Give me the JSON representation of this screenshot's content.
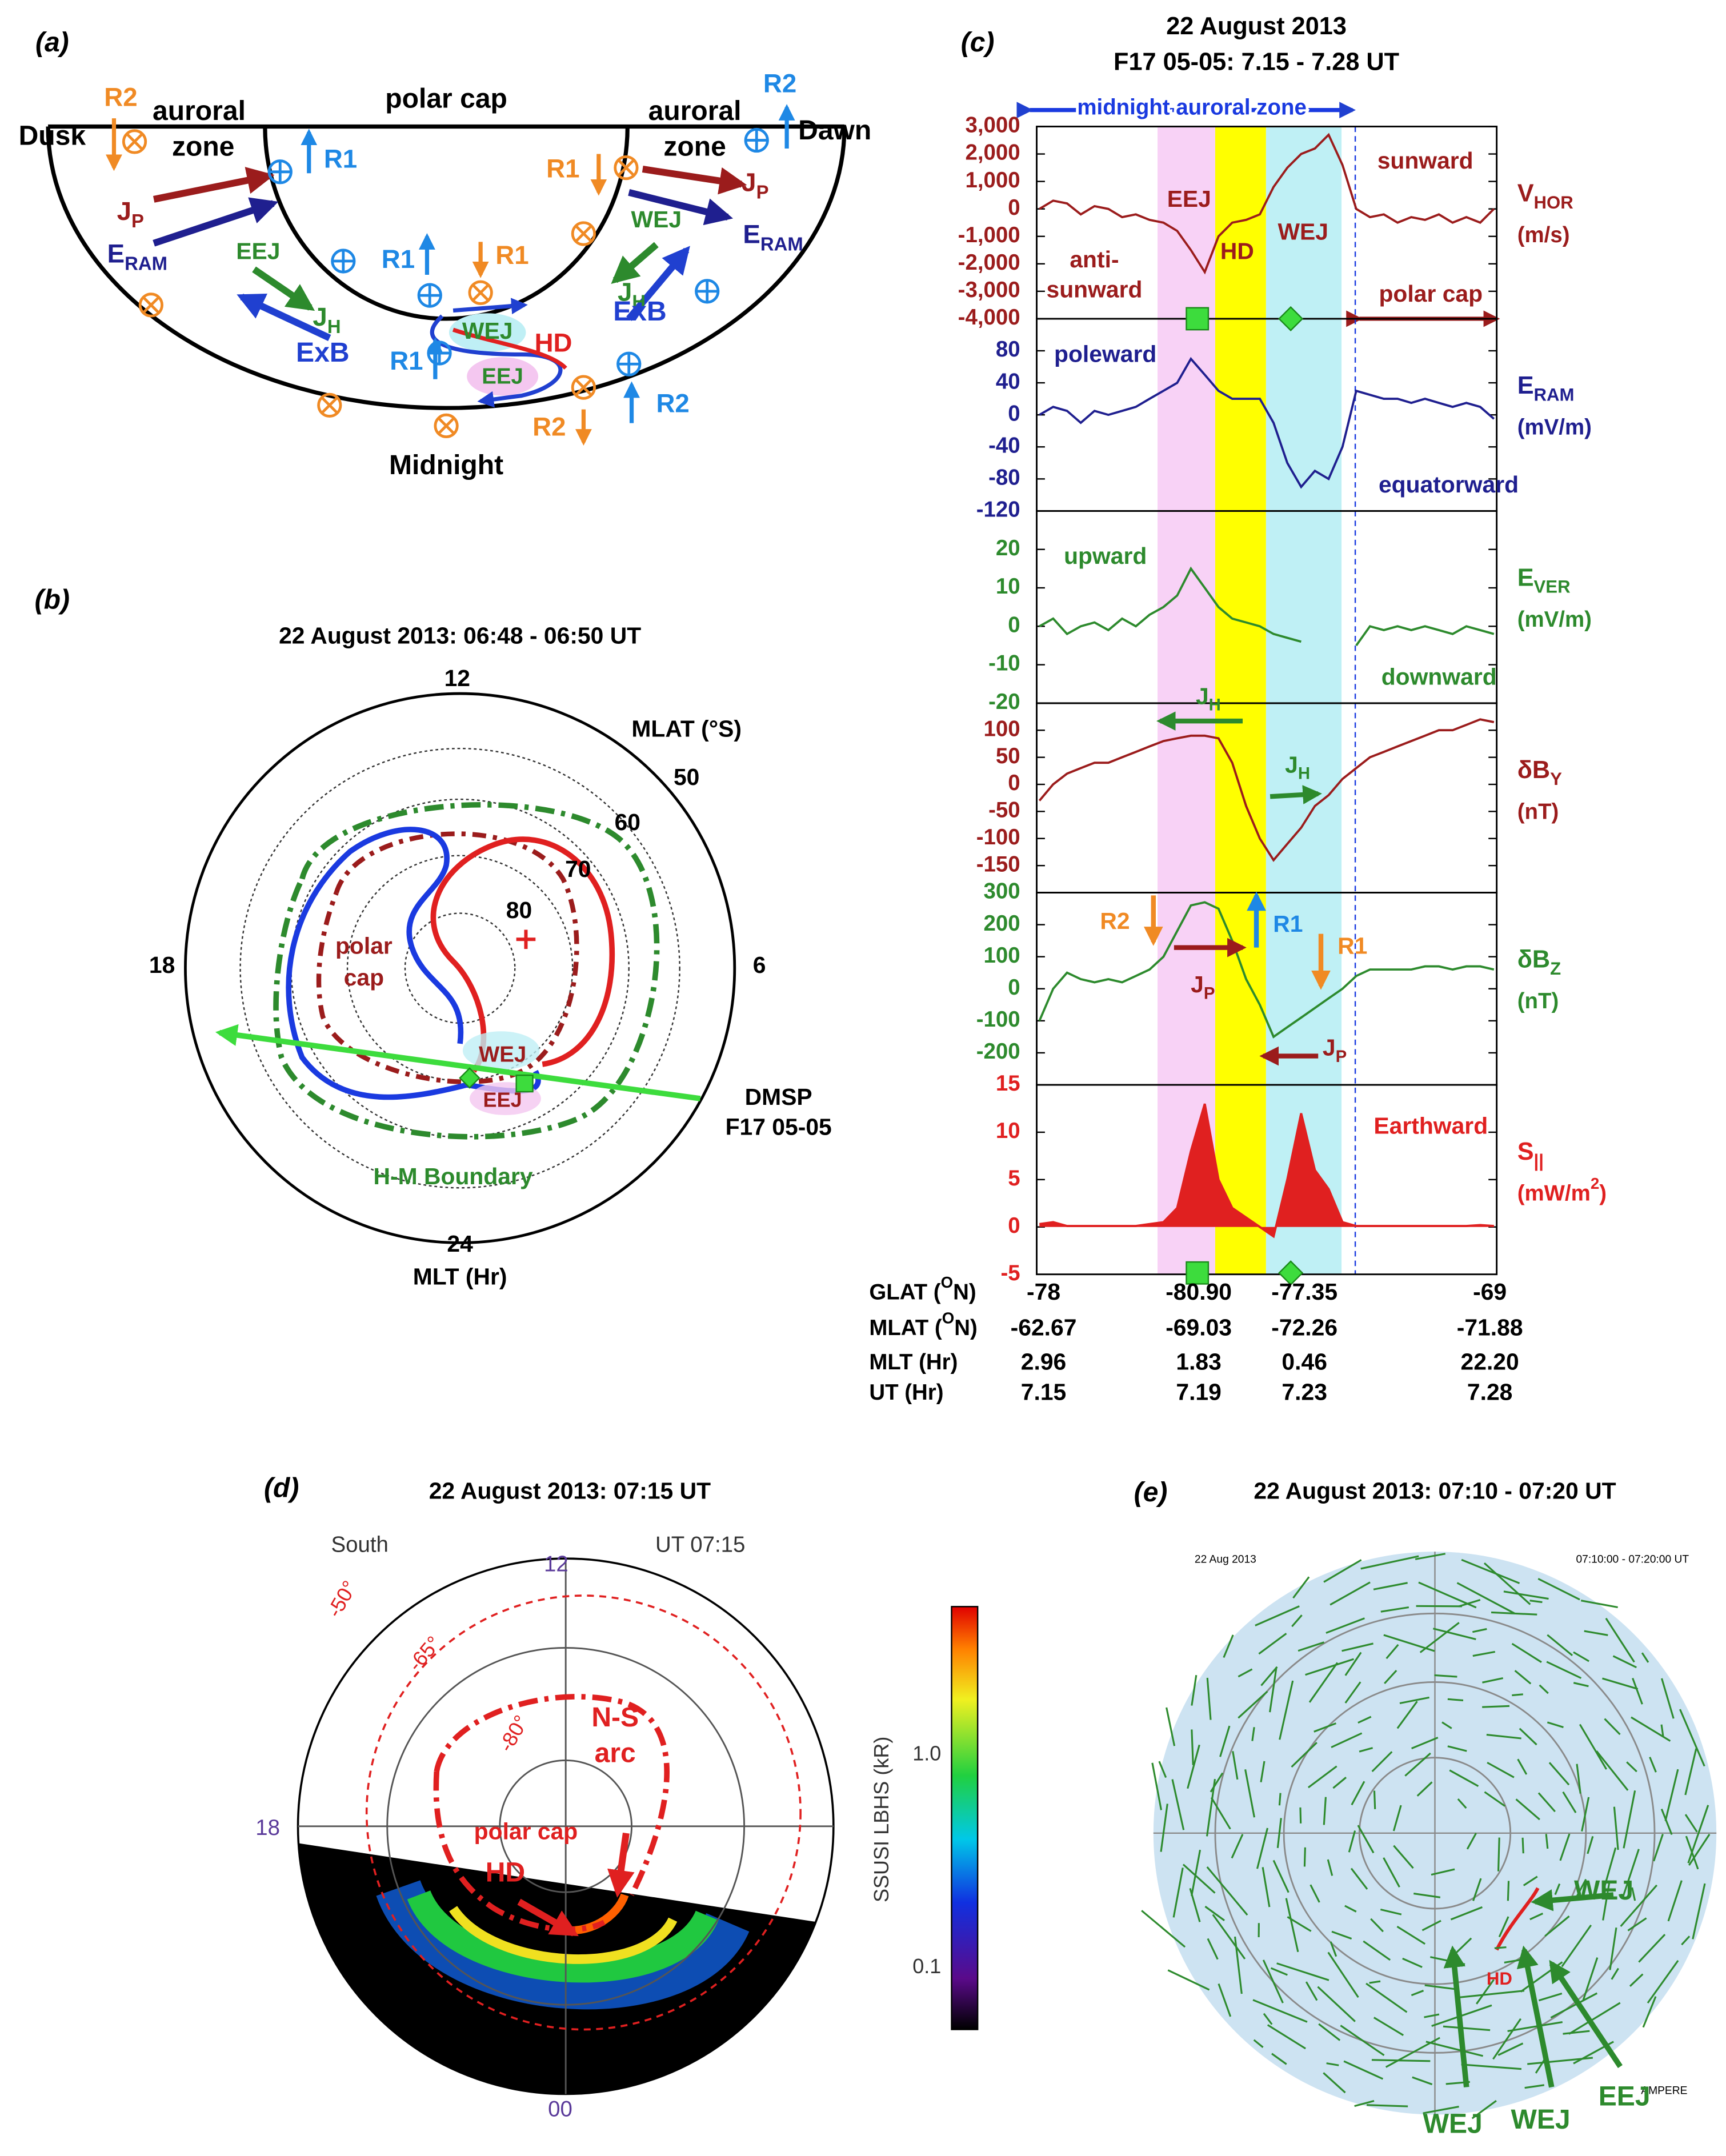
{
  "panel_a": {
    "label": "(a)",
    "texts": [
      "Dusk",
      "R2",
      "auroral",
      "zone",
      "polar cap",
      "auroral",
      "zone",
      "R2",
      "Dawn",
      "R1",
      {
        "main": "J",
        "sub": "P"
      },
      {
        "main": "E",
        "sub": "RAM"
      },
      "R1",
      {
        "main": "J",
        "sub": "P"
      },
      {
        "main": "E",
        "sub": "RAM"
      },
      "EEJ",
      {
        "main": "J",
        "sub": "H"
      },
      "ExB",
      "R1",
      "R1",
      "WEJ",
      {
        "main": "J",
        "sub": "H"
      },
      "ExB",
      "WEJ",
      "HD",
      "EEJ",
      "R1",
      "R2",
      "R2",
      "Midnight"
    ]
  },
  "panel_b": {
    "label": "(b)",
    "title": "22 August 2013: 06:48 - 06:50 UT",
    "mlt_labels": [
      "12",
      "18",
      "6",
      "24"
    ],
    "mlt_axis": "MLT (Hr)",
    "mlat_axis": "MLAT (°S)",
    "mlat_labels": [
      "50",
      "60",
      "70",
      "80"
    ],
    "texts": [
      "polar",
      "cap",
      "WEJ",
      "EEJ",
      "DMSP",
      "F17 05-05",
      "H-M Boundary"
    ]
  },
  "panel_c": {
    "label": "(c)",
    "title": [
      "22 August 2013",
      "F17 05-05: 7.15 - 7.28 UT"
    ],
    "top_annotation": "midnight auroral zone",
    "subplots": [
      {
        "label": {
          "main": "V",
          "sub": "HOR"
        },
        "unit": "(m/s)",
        "color": "#9b1c1c",
        "ylim": [
          -4000,
          3000
        ],
        "yticks": [
          {
            "value": 3000,
            "label": "3,000"
          },
          {
            "value": 2000,
            "label": "2,000"
          },
          {
            "value": 1000,
            "label": "1,000"
          },
          0,
          {
            "value": -1000,
            "label": "-1,000"
          },
          {
            "value": -2000,
            "label": "-2,000"
          },
          {
            "value": -3000,
            "label": "-3,000"
          },
          {
            "value": -4000,
            "label": "-4,000"
          }
        ],
        "values": [
          0,
          300,
          200,
          -200,
          100,
          0,
          -300,
          -200,
          -400,
          -500,
          -800,
          -1500,
          -2300,
          -1000,
          -500,
          -400,
          -200,
          800,
          1500,
          2000,
          2200,
          2700,
          1600,
          0,
          -300,
          -200,
          -500,
          -300,
          -400,
          -200,
          -500,
          -300,
          -500,
          0
        ],
        "annotations": [
          "sunward",
          "EEJ",
          "HD",
          "WEJ",
          "anti-",
          "sunward",
          "polar cap"
        ]
      },
      {
        "label": {
          "main": "E",
          "sub": "RAM"
        },
        "unit": "(mV/m)",
        "color": "#1f1f8f",
        "ylim": [
          -120,
          120
        ],
        "yticks": [
          80,
          40,
          0,
          -40,
          -80,
          -120
        ],
        "values": [
          0,
          10,
          5,
          -10,
          5,
          0,
          5,
          10,
          20,
          30,
          40,
          70,
          50,
          30,
          20,
          20,
          20,
          -10,
          -60,
          -90,
          -70,
          -80,
          -40,
          30,
          25,
          20,
          20,
          15,
          20,
          15,
          10,
          15,
          10,
          -5
        ],
        "annotations": [
          "poleward",
          "equatorward"
        ]
      },
      {
        "label": {
          "main": "E",
          "sub": "VER"
        },
        "unit": "(mV/m)",
        "color": "#2d8a2d",
        "ylim": [
          -20,
          30
        ],
        "yticks": [
          20,
          10,
          0,
          -10,
          -20
        ],
        "values": [
          0,
          2,
          -2,
          0,
          1,
          -1,
          2,
          0,
          3,
          5,
          8,
          15,
          10,
          5,
          2,
          1,
          0,
          -2,
          -3,
          -4,
          null,
          null,
          null,
          -5,
          0,
          -1,
          0,
          -1,
          0,
          -1,
          -2,
          0,
          -1,
          -2
        ],
        "annotations": [
          "upward",
          "downward"
        ]
      },
      {
        "label": {
          "main": "δB",
          "sub": "Y"
        },
        "unit": "(nT)",
        "color": "#9b1c1c",
        "ylim": [
          -200,
          150
        ],
        "yticks": [
          100,
          50,
          0,
          -50,
          -100,
          -150
        ],
        "values": [
          -30,
          0,
          20,
          30,
          40,
          40,
          50,
          60,
          70,
          80,
          85,
          90,
          90,
          85,
          40,
          -40,
          -100,
          -140,
          -110,
          -80,
          -40,
          -20,
          10,
          30,
          50,
          60,
          70,
          80,
          90,
          100,
          100,
          110,
          120,
          115
        ],
        "annotations": [
          {
            "main": "J",
            "sub": "H"
          },
          {
            "main": "J",
            "sub": "H"
          }
        ]
      },
      {
        "label": {
          "main": "δB",
          "sub": "Z"
        },
        "unit": "(nT)",
        "color": "#2d8a2d",
        "ylim": [
          -300,
          300
        ],
        "yticks": [
          300,
          200,
          100,
          0,
          -100,
          -200
        ],
        "values": [
          -100,
          0,
          50,
          30,
          20,
          30,
          20,
          40,
          60,
          100,
          180,
          260,
          270,
          250,
          150,
          30,
          -50,
          -150,
          -120,
          -90,
          -60,
          -30,
          0,
          40,
          60,
          60,
          60,
          60,
          70,
          70,
          60,
          70,
          70,
          60
        ],
        "annotations": [
          "R2",
          {
            "main": "J",
            "sub": "P"
          },
          "R1",
          "R1",
          {
            "main": "J",
            "sub": "P"
          }
        ]
      },
      {
        "label": {
          "main": "S",
          "sub": "||"
        },
        "unit": {
          "main": "(mW/m",
          "sup": "2",
          "tail": ")"
        },
        "color": "#e02020",
        "ylim": [
          -5,
          15
        ],
        "yticks": [
          15,
          10,
          5,
          0,
          -5
        ],
        "values": [
          0.3,
          0.5,
          0.1,
          0.1,
          0.1,
          0.1,
          0.1,
          0.1,
          0.3,
          0.5,
          2,
          8,
          13,
          5,
          2,
          1,
          0,
          -1,
          5,
          12,
          6,
          4,
          0.5,
          0.1,
          0.1,
          0.1,
          0.1,
          0.1,
          0.1,
          0.1,
          0.1,
          0.1,
          0.2,
          0.1
        ],
        "annotations": [
          "Earthward"
        ]
      }
    ],
    "rows": [
      {
        "name": {
          "main": "GLAT (",
          "sup": "O",
          "tail": "N)"
        },
        "values": [
          "-78",
          "-80.90",
          "-77.35",
          "-69"
        ]
      },
      {
        "name": {
          "main": "MLAT (",
          "sup": "O",
          "tail": "N)"
        },
        "values": [
          "-62.67",
          "-69.03",
          "-72.26",
          "-71.88"
        ]
      },
      {
        "name": "MLT (Hr)",
        "values": [
          "2.96",
          "1.83",
          "0.46",
          "22.20"
        ]
      },
      {
        "name": "UT (Hr)",
        "values": [
          "7.15",
          "7.19",
          "7.23",
          "7.28"
        ]
      }
    ]
  },
  "panel_d": {
    "label": "(d)",
    "title": "22 August 2013: 07:15 UT",
    "corner_left": "South",
    "corner_right": "UT 07:15",
    "mlt_labels": [
      "12",
      "18",
      "00"
    ],
    "lat_labels": [
      "-50°",
      "-65°",
      "-80°"
    ],
    "annotations": [
      "N-S",
      "arc",
      "polar cap",
      "HD"
    ],
    "colorbar": {
      "label": "SSUSI LBHS  (kR)",
      "ticks": [
        "1.0",
        "0.1"
      ]
    }
  },
  "panel_e": {
    "label": "(e)",
    "title": "22 August 2013: 07:10 - 07:20 UT",
    "small_texts": [
      "22 Aug 2013",
      "07:10:00 - 07:20:00 UT",
      "AMPERE"
    ],
    "annotations": [
      "WEJ",
      "HD",
      "WEJ",
      "WEJ",
      "EEJ"
    ]
  }
}
